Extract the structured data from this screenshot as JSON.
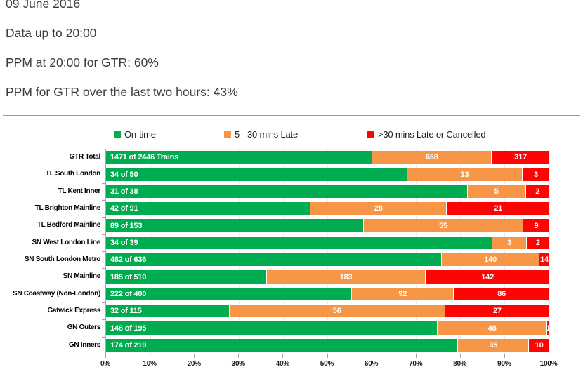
{
  "header": {
    "date": "09 June 2016",
    "data_up_to": "Data up to 20:00",
    "ppm_now": "PPM at 20:00 for GTR: 60%",
    "ppm_last_two_hours": "PPM for GTR over the last two hours: 43%"
  },
  "chart_data": {
    "type": "bar",
    "orientation": "horizontal",
    "stacked": true,
    "legend": [
      "On-time",
      "5 - 30 mins Late",
      ">30 mins Late or Cancelled"
    ],
    "legend_position": "top",
    "colors": {
      "on_time": "#00AC4F",
      "late": "#F79646",
      "cancelled": "#FB0505",
      "axis": "#A6A6A6",
      "gridline": "#ECECEC"
    },
    "x_axis": {
      "min": 0,
      "max": 100,
      "ticks": [
        "0%",
        "10%",
        "20%",
        "30%",
        "40%",
        "50%",
        "60%",
        "70%",
        "80%",
        "90%",
        "100%"
      ]
    },
    "categories": [
      "GTR Total",
      "TL South London",
      "TL Kent Inner",
      "TL Brighton Mainline",
      "TL Bedford Mainline",
      "SN West London Line",
      "SN South London Metro",
      "SN Mainline",
      "SN Coastway (Non-London)",
      "Gatwick Express",
      "GN Outers",
      "GN Inners"
    ],
    "totals": [
      2446,
      50,
      38,
      91,
      153,
      39,
      636,
      510,
      400,
      115,
      195,
      219
    ],
    "series": [
      {
        "name": "On-time",
        "values": [
          1471,
          34,
          31,
          42,
          89,
          34,
          482,
          185,
          222,
          32,
          146,
          174
        ]
      },
      {
        "name": "5 - 30 mins Late",
        "values": [
          658,
          13,
          5,
          28,
          55,
          3,
          140,
          183,
          92,
          56,
          48,
          35
        ]
      },
      {
        "name": ">30 mins Late or Cancelled",
        "values": [
          317,
          3,
          2,
          21,
          9,
          2,
          14,
          142,
          86,
          27,
          1,
          10
        ]
      }
    ],
    "bar_labels": {
      "on_time": [
        "1471 of 2446 Trains",
        "34 of 50",
        "31 of 38",
        "42 of 91",
        "89 of 153",
        "34 of 39",
        "482 of 636",
        "185 of 510",
        "222 of 400",
        "32 of 115",
        "146 of 195",
        "174 of 219"
      ],
      "late": [
        "658",
        "13",
        "5",
        "28",
        "55",
        "3",
        "140",
        "183",
        "92",
        "56",
        "48",
        "35"
      ],
      "cancelled": [
        "317",
        "3",
        "2",
        "21",
        "9",
        "2",
        "14",
        "142",
        "86",
        "27",
        "1",
        "10"
      ]
    }
  }
}
